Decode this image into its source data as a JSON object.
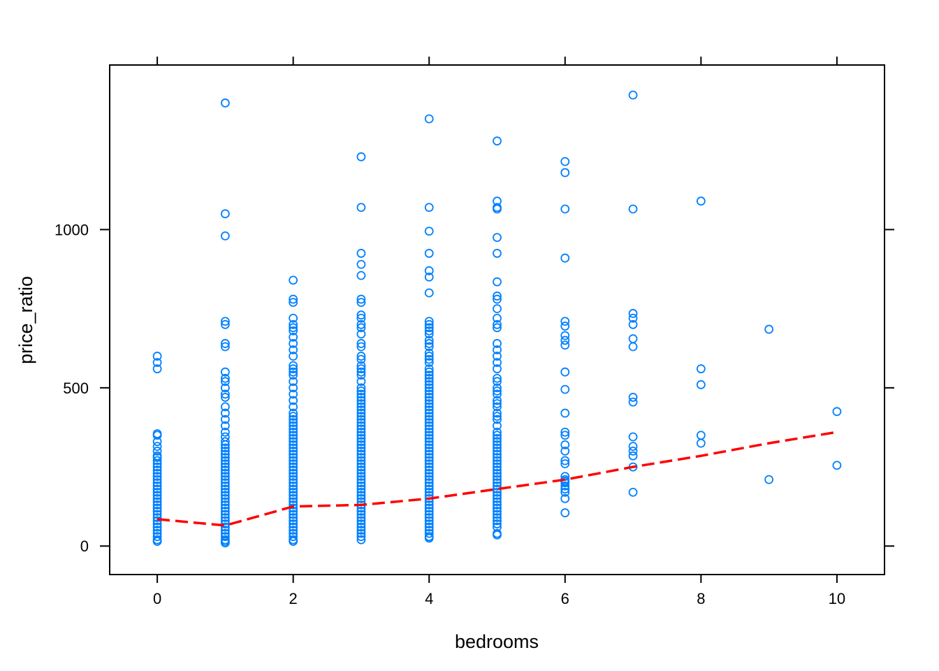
{
  "chart_data": {
    "type": "scatter",
    "title": "",
    "xlabel": "bedrooms",
    "ylabel": "price_ratio",
    "xlim": [
      -0.7,
      10.7
    ],
    "ylim": [
      -90,
      1520
    ],
    "x_ticks": [
      0,
      2,
      4,
      6,
      8,
      10
    ],
    "x_tick_labels": [
      "0",
      "2",
      "4",
      "6",
      "8",
      "10"
    ],
    "y_ticks": [
      0,
      500,
      1000
    ],
    "y_tick_labels": [
      "0",
      "500",
      "1000"
    ],
    "grid": false,
    "legend": "none",
    "colors": {
      "points": "#0080ff",
      "trend": "#ff0000",
      "axes": "#000000"
    },
    "series": [
      {
        "kind": "points",
        "points": [
          {
            "x": 0,
            "values": [
              600,
              580,
              560,
              355,
              350,
              330,
              315,
              300,
              285,
              280,
              270,
              260,
              250,
              240,
              230,
              220,
              210,
              200,
              190,
              180,
              170,
              160,
              150,
              140,
              130,
              120,
              110,
              100,
              90,
              80,
              70,
              60,
              50,
              40,
              30,
              20,
              15
            ]
          },
          {
            "x": 1,
            "values": [
              1400,
              1050,
              980,
              710,
              700,
              640,
              630,
              550,
              530,
              520,
              500,
              480,
              470,
              440,
              420,
              400,
              380,
              360,
              345,
              330,
              320,
              310,
              300,
              290,
              280,
              270,
              260,
              250,
              240,
              230,
              220,
              210,
              200,
              190,
              180,
              170,
              160,
              150,
              140,
              130,
              120,
              110,
              100,
              90,
              80,
              70,
              60,
              50,
              40,
              30,
              20,
              15,
              10
            ]
          },
          {
            "x": 2,
            "values": [
              840,
              780,
              770,
              720,
              700,
              690,
              680,
              660,
              640,
              620,
              600,
              570,
              560,
              550,
              540,
              520,
              500,
              480,
              460,
              440,
              420,
              410,
              400,
              390,
              380,
              370,
              360,
              350,
              340,
              330,
              320,
              310,
              300,
              290,
              280,
              270,
              260,
              250,
              240,
              230,
              220,
              210,
              200,
              190,
              180,
              170,
              160,
              150,
              140,
              130,
              120,
              110,
              100,
              90,
              80,
              70,
              60,
              50,
              40,
              30,
              20,
              15
            ]
          },
          {
            "x": 3,
            "values": [
              1230,
              1070,
              925,
              890,
              855,
              780,
              770,
              730,
              720,
              700,
              690,
              670,
              640,
              630,
              600,
              590,
              570,
              560,
              550,
              540,
              520,
              500,
              490,
              480,
              470,
              460,
              450,
              440,
              430,
              420,
              410,
              400,
              390,
              380,
              370,
              360,
              350,
              340,
              330,
              320,
              310,
              300,
              290,
              280,
              270,
              260,
              250,
              240,
              230,
              220,
              210,
              200,
              190,
              180,
              170,
              160,
              150,
              140,
              130,
              120,
              110,
              100,
              90,
              80,
              70,
              60,
              50,
              40,
              30,
              20
            ]
          },
          {
            "x": 4,
            "values": [
              1350,
              1070,
              995,
              925,
              870,
              850,
              800,
              710,
              700,
              690,
              680,
              670,
              650,
              640,
              630,
              610,
              600,
              590,
              580,
              560,
              550,
              540,
              530,
              520,
              510,
              500,
              490,
              480,
              470,
              460,
              450,
              440,
              430,
              420,
              410,
              400,
              390,
              380,
              370,
              360,
              350,
              340,
              330,
              320,
              310,
              300,
              290,
              280,
              270,
              260,
              250,
              240,
              230,
              220,
              210,
              200,
              190,
              180,
              170,
              160,
              150,
              140,
              130,
              120,
              110,
              100,
              90,
              80,
              70,
              60,
              50,
              40,
              30,
              25
            ]
          },
          {
            "x": 5,
            "values": [
              1280,
              1090,
              1070,
              1065,
              975,
              925,
              835,
              790,
              780,
              750,
              720,
              700,
              690,
              640,
              620,
              600,
              580,
              560,
              530,
              520,
              500,
              490,
              480,
              460,
              450,
              440,
              420,
              410,
              400,
              380,
              360,
              350,
              340,
              330,
              320,
              310,
              300,
              290,
              280,
              270,
              260,
              250,
              240,
              230,
              220,
              210,
              200,
              190,
              180,
              170,
              160,
              150,
              140,
              130,
              120,
              110,
              100,
              90,
              80,
              70,
              60,
              40,
              35
            ]
          },
          {
            "x": 6,
            "values": [
              1215,
              1180,
              1065,
              910,
              710,
              695,
              665,
              650,
              635,
              550,
              495,
              420,
              360,
              350,
              320,
              300,
              270,
              260,
              220,
              210,
              205,
              200,
              190,
              180,
              170,
              150,
              105
            ]
          },
          {
            "x": 7,
            "values": [
              1425,
              1065,
              735,
              720,
              700,
              655,
              630,
              470,
              455,
              345,
              315,
              300,
              285,
              250,
              170
            ]
          },
          {
            "x": 8,
            "values": [
              1090,
              560,
              510,
              350,
              325
            ]
          },
          {
            "x": 9,
            "values": [
              685,
              210
            ]
          },
          {
            "x": 10,
            "values": [
              425,
              255
            ]
          }
        ]
      },
      {
        "kind": "trend",
        "x": [
          0,
          1,
          2,
          3,
          4,
          5,
          6,
          7,
          8,
          9,
          10
        ],
        "y": [
          85,
          65,
          125,
          130,
          150,
          180,
          210,
          250,
          285,
          325,
          360
        ]
      }
    ]
  }
}
